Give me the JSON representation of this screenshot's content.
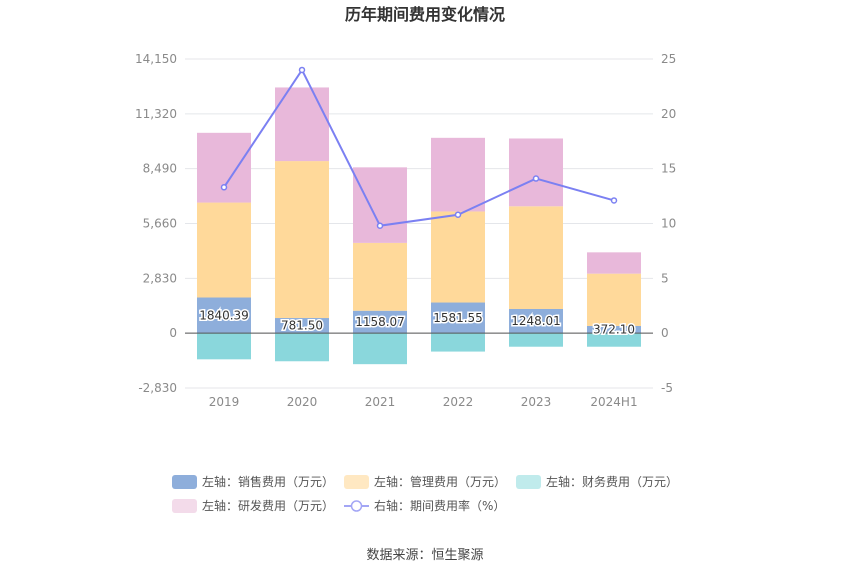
{
  "chart_data": {
    "type": "bar",
    "title": "历年期间费用变化情况",
    "categories": [
      "2019",
      "2020",
      "2021",
      "2022",
      "2023",
      "2024H1"
    ],
    "left_axis": {
      "ticks": [
        "14,150",
        "11,320",
        "8,490",
        "5,660",
        "2,830",
        "0",
        "-2,830"
      ],
      "min": -2830,
      "max": 14150
    },
    "right_axis": {
      "ticks": [
        "25",
        "20",
        "15",
        "10",
        "5",
        "0",
        "-5"
      ],
      "min": -5,
      "max": 25
    },
    "series": [
      {
        "name": "左轴：销售费用（万元）",
        "color": "#8eaedb",
        "values": [
          1840.39,
          781.5,
          1158.07,
          1581.55,
          1248.01,
          372.1
        ],
        "labels": [
          "1840.39",
          "781.50",
          "1158.07",
          "1581.55",
          "1248.01",
          "372.10"
        ]
      },
      {
        "name": "左轴：管理费用（万元）",
        "color": "#ffd99a",
        "values": [
          4900,
          8100,
          3500,
          4700,
          5300,
          2700
        ]
      },
      {
        "name": "左轴：财务费用（万元）",
        "color": "#8ad7dc",
        "values": [
          -1350,
          -1450,
          -1600,
          -950,
          -700,
          -700
        ]
      },
      {
        "name": "左轴：研发费用（万元）",
        "color": "#e8b8da",
        "values": [
          3600,
          3800,
          3900,
          3800,
          3500,
          1100
        ]
      },
      {
        "name": "右轴：期间费用率（%）",
        "color": "#7b80f2",
        "type": "line",
        "values": [
          13.3,
          24.0,
          9.8,
          10.8,
          14.1,
          12.1
        ]
      }
    ],
    "legend_placement": "bottom",
    "grid": true
  },
  "source": "数据来源：恒生聚源"
}
